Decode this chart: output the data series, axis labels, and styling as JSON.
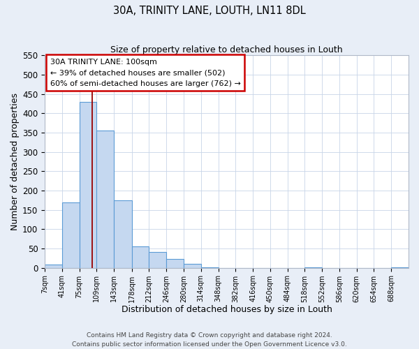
{
  "title": "30A, TRINITY LANE, LOUTH, LN11 8DL",
  "subtitle": "Size of property relative to detached houses in Louth",
  "xlabel": "Distribution of detached houses by size in Louth",
  "ylabel": "Number of detached properties",
  "footer_lines": [
    "Contains HM Land Registry data © Crown copyright and database right 2024.",
    "Contains public sector information licensed under the Open Government Licence v3.0."
  ],
  "bin_labels": [
    "7sqm",
    "41sqm",
    "75sqm",
    "109sqm",
    "143sqm",
    "178sqm",
    "212sqm",
    "246sqm",
    "280sqm",
    "314sqm",
    "348sqm",
    "382sqm",
    "416sqm",
    "450sqm",
    "484sqm",
    "518sqm",
    "552sqm",
    "586sqm",
    "620sqm",
    "654sqm",
    "688sqm"
  ],
  "bin_edges": [
    7,
    41,
    75,
    109,
    143,
    178,
    212,
    246,
    280,
    314,
    348,
    382,
    416,
    450,
    484,
    518,
    552,
    586,
    620,
    654,
    688,
    722
  ],
  "bar_values": [
    8,
    170,
    430,
    355,
    175,
    55,
    40,
    22,
    10,
    2,
    0,
    0,
    0,
    0,
    0,
    1,
    0,
    0,
    0,
    0,
    1
  ],
  "bar_color": "#c5d8f0",
  "bar_edge_color": "#5b9bd5",
  "vline_x": 100,
  "vline_color": "#990000",
  "annotation_title": "30A TRINITY LANE: 100sqm",
  "annotation_line1": "← 39% of detached houses are smaller (502)",
  "annotation_line2": "60% of semi-detached houses are larger (762) →",
  "annotation_box_facecolor": "#ffffff",
  "annotation_box_edgecolor": "#cc0000",
  "ylim": [
    0,
    550
  ],
  "yticks": [
    0,
    50,
    100,
    150,
    200,
    250,
    300,
    350,
    400,
    450,
    500,
    550
  ],
  "bg_color": "#e8eef7",
  "plot_bg_color": "#ffffff",
  "grid_color": "#c8d4e8"
}
